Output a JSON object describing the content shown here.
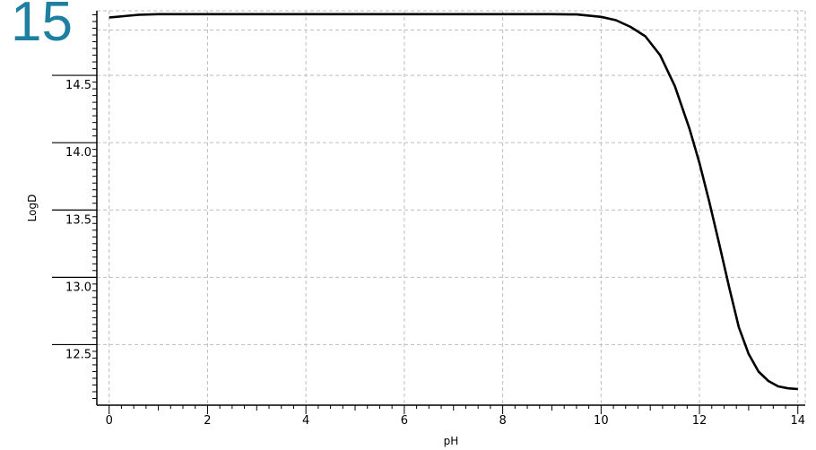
{
  "badge_number": "15",
  "chart_data": {
    "type": "line",
    "xlabel": "pH",
    "ylabel": "LogD",
    "xlim": [
      -0.25,
      14.15
    ],
    "ylim": [
      12.05,
      14.98
    ],
    "xticks": [
      0,
      2,
      4,
      6,
      8,
      10,
      12,
      14
    ],
    "xtick_labels": [
      "0",
      "2",
      "4",
      "6",
      "8",
      "10",
      "12",
      "14"
    ],
    "yticks": [
      12.5,
      13.0,
      13.5,
      14.0,
      14.5
    ],
    "ytick_labels": [
      "12.5",
      "13.0",
      "13.5",
      "14.0",
      "14.5"
    ],
    "grid": true,
    "series": [
      {
        "color": "#000000",
        "x": [
          0,
          0.3,
          0.6,
          1,
          2,
          3,
          4,
          5,
          6,
          7,
          8,
          9,
          9.5,
          10,
          10.3,
          10.6,
          10.9,
          11.2,
          11.5,
          11.8,
          12.0,
          12.2,
          12.4,
          12.6,
          12.8,
          13.0,
          13.2,
          13.4,
          13.6,
          13.8,
          14.0
        ],
        "y": [
          14.93,
          14.94,
          14.95,
          14.955,
          14.955,
          14.955,
          14.955,
          14.955,
          14.955,
          14.955,
          14.955,
          14.955,
          14.953,
          14.935,
          14.91,
          14.86,
          14.79,
          14.65,
          14.42,
          14.1,
          13.85,
          13.56,
          13.25,
          12.93,
          12.63,
          12.43,
          12.3,
          12.23,
          12.19,
          12.175,
          12.17
        ]
      }
    ]
  }
}
